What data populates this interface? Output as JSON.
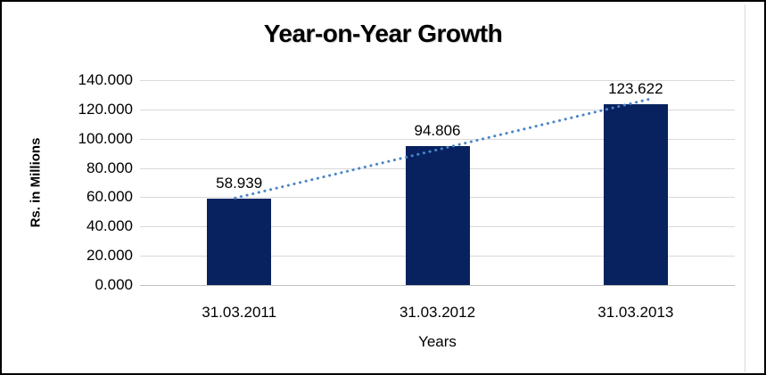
{
  "chart_data": {
    "type": "bar",
    "title": "Year-on-Year Growth",
    "xlabel": "Years",
    "ylabel": "Rs. in Millions",
    "categories": [
      "31.03.2011",
      "31.03.2012",
      "31.03.2013"
    ],
    "values": [
      58.939,
      94.806,
      123.622
    ],
    "value_labels": [
      "58.939",
      "94.806",
      "123.622"
    ],
    "ylim": [
      0,
      140
    ],
    "ytick_values": [
      0,
      20,
      40,
      60,
      80,
      100,
      120,
      140
    ],
    "ytick_labels": [
      "0.000",
      "20.000",
      "40.000",
      "60.000",
      "80.000",
      "100.000",
      "120.000",
      "140.000"
    ],
    "grid": true,
    "legend": "none",
    "colors": {
      "bar_fill": "#082260",
      "trendline": "#4A86C8",
      "gridline": "#D9D9D9",
      "axis_line": "#BFBFBF",
      "text": "#000000",
      "background": "#FFFFFF",
      "frame_border": "#000000"
    },
    "trendline": {
      "type": "linear",
      "style": "dotted"
    }
  }
}
